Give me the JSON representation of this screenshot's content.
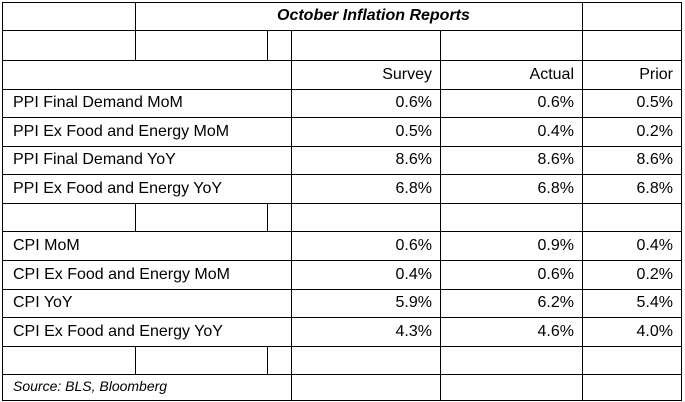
{
  "title": "October Inflation Reports",
  "source": "Source: BLS, Bloomberg",
  "columns": [
    "Survey",
    "Actual",
    "Prior"
  ],
  "ppi_rows": [
    {
      "label": "PPI Final Demand MoM",
      "survey": "0.6%",
      "actual": "0.6%",
      "prior": "0.5%"
    },
    {
      "label": "PPI Ex Food and Energy MoM",
      "survey": "0.5%",
      "actual": "0.4%",
      "prior": "0.2%"
    },
    {
      "label": "PPI Final Demand YoY",
      "survey": "8.6%",
      "actual": "8.6%",
      "prior": "8.6%"
    },
    {
      "label": "PPI Ex Food and Energy YoY",
      "survey": "6.8%",
      "actual": "6.8%",
      "prior": "6.8%"
    }
  ],
  "cpi_rows": [
    {
      "label": "CPI MoM",
      "survey": "0.6%",
      "actual": "0.9%",
      "prior": "0.4%"
    },
    {
      "label": "CPI Ex Food and Energy MoM",
      "survey": "0.4%",
      "actual": "0.6%",
      "prior": "0.2%"
    },
    {
      "label": "CPI YoY",
      "survey": "5.9%",
      "actual": "6.2%",
      "prior": "5.4%"
    },
    {
      "label": "CPI Ex Food and Energy YoY",
      "survey": "4.3%",
      "actual": "4.6%",
      "prior": "4.0%"
    }
  ]
}
